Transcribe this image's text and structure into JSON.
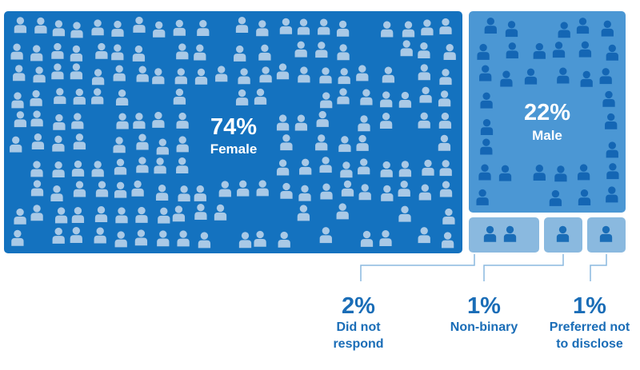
{
  "chart_data": {
    "type": "treemap",
    "title": "",
    "unit": "%",
    "segments": [
      {
        "label": "Female",
        "value": 74,
        "value_label": "74%",
        "color": "#1472bf",
        "icon_color": "#a9c9e6"
      },
      {
        "label": "Male",
        "value": 22,
        "value_label": "22%",
        "color": "#4b97d4",
        "icon_color": "#1466b4"
      },
      {
        "label": "Did not respond",
        "label_lines": [
          "Did not",
          "respond"
        ],
        "value": 2,
        "value_label": "2%",
        "color": "#8ab9df",
        "icon_color": "#1a6db7"
      },
      {
        "label": "Non-binary",
        "label_lines": [
          "Non-binary"
        ],
        "value": 1,
        "value_label": "1%",
        "color": "#8ab9df",
        "icon_color": "#1a6db7"
      },
      {
        "label": "Preferred not to disclose",
        "label_lines": [
          "Preferred not",
          "to disclose"
        ],
        "value": 1,
        "value_label": "1%",
        "color": "#8ab9df",
        "icon_color": "#1a6db7"
      }
    ],
    "annotation_color": "#1a6db7",
    "leader_color": "#8ab9df"
  }
}
